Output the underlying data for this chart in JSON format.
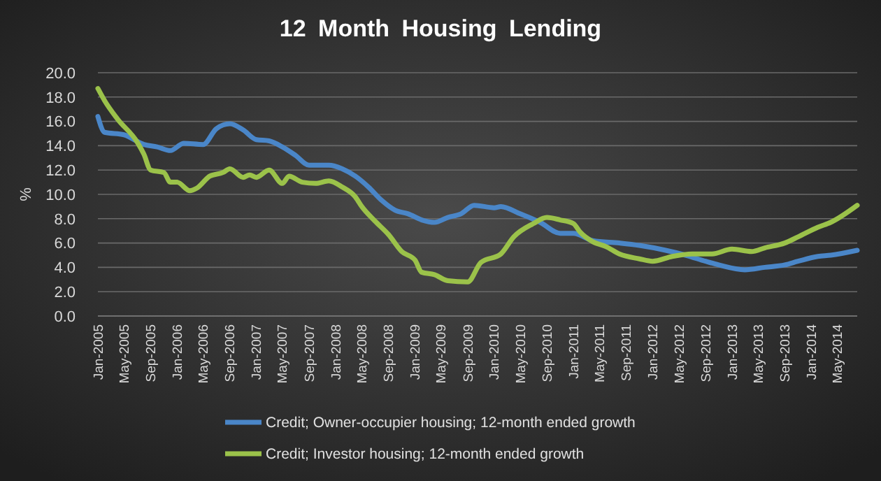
{
  "chart_data": {
    "type": "line",
    "title": "12 Month Housing Lending",
    "ylabel": "%",
    "xlim": [
      "2005-01",
      "2014-08"
    ],
    "xticks": [
      {
        "value": "2005-01",
        "label": "Jan-2005"
      },
      {
        "value": "2005-05",
        "label": "May-2005"
      },
      {
        "value": "2005-09",
        "label": "Sep-2005"
      },
      {
        "value": "2006-01",
        "label": "Jan-2006"
      },
      {
        "value": "2006-05",
        "label": "May-2006"
      },
      {
        "value": "2006-09",
        "label": "Sep-2006"
      },
      {
        "value": "2007-01",
        "label": "Jan-2007"
      },
      {
        "value": "2007-05",
        "label": "May-2007"
      },
      {
        "value": "2007-09",
        "label": "Sep-2007"
      },
      {
        "value": "2008-01",
        "label": "Jan-2008"
      },
      {
        "value": "2008-05",
        "label": "May-2008"
      },
      {
        "value": "2008-09",
        "label": "Sep-2008"
      },
      {
        "value": "2009-01",
        "label": "Jan-2009"
      },
      {
        "value": "2009-05",
        "label": "May-2009"
      },
      {
        "value": "2009-09",
        "label": "Sep-2009"
      },
      {
        "value": "2010-01",
        "label": "Jan-2010"
      },
      {
        "value": "2010-05",
        "label": "May-2010"
      },
      {
        "value": "2010-09",
        "label": "Sep-2010"
      },
      {
        "value": "2011-01",
        "label": "Jan-2011"
      },
      {
        "value": "2011-05",
        "label": "May-2011"
      },
      {
        "value": "2011-09",
        "label": "Sep-2011"
      },
      {
        "value": "2012-01",
        "label": "Jan-2012"
      },
      {
        "value": "2012-05",
        "label": "May-2012"
      },
      {
        "value": "2012-09",
        "label": "Sep-2012"
      },
      {
        "value": "2013-01",
        "label": "Jan-2013"
      },
      {
        "value": "2013-05",
        "label": "May-2013"
      },
      {
        "value": "2013-09",
        "label": "Sep-2013"
      },
      {
        "value": "2014-01",
        "label": "Jan-2014"
      },
      {
        "value": "2014-05",
        "label": "May-2014"
      }
    ],
    "ylim": [
      0,
      20
    ],
    "yticks": [
      {
        "value": 0,
        "label": "0.0"
      },
      {
        "value": 2,
        "label": "2.0"
      },
      {
        "value": 4,
        "label": "4.0"
      },
      {
        "value": 6,
        "label": "6.0"
      },
      {
        "value": 8,
        "label": "8.0"
      },
      {
        "value": 10,
        "label": "10.0"
      },
      {
        "value": 12,
        "label": "12.0"
      },
      {
        "value": 14,
        "label": "14.0"
      },
      {
        "value": 16,
        "label": "16.0"
      },
      {
        "value": 18,
        "label": "18.0"
      },
      {
        "value": 20,
        "label": "20.0"
      }
    ],
    "grid": "y",
    "legend": "bottom",
    "marker": "none",
    "line_style": "solid",
    "series": [
      {
        "name": "Credit; Owner-occupier housing; 12-month ended growth",
        "color": "#4a86c8",
        "x": [
          "2005-01",
          "2005-02",
          "2005-05",
          "2005-08",
          "2005-10",
          "2005-12",
          "2006-02",
          "2006-05",
          "2006-07",
          "2006-09",
          "2006-11",
          "2007-01",
          "2007-03",
          "2007-05",
          "2007-07",
          "2007-09",
          "2007-12",
          "2008-02",
          "2008-04",
          "2008-06",
          "2008-08",
          "2008-10",
          "2008-12",
          "2009-02",
          "2009-04",
          "2009-06",
          "2009-08",
          "2009-10",
          "2010-01",
          "2010-02",
          "2010-05",
          "2010-08",
          "2010-11",
          "2011-01",
          "2011-04",
          "2011-08",
          "2011-11",
          "2012-03",
          "2012-06",
          "2012-09",
          "2012-11",
          "2013-03",
          "2013-06",
          "2013-09",
          "2013-11",
          "2014-02",
          "2014-04",
          "2014-08"
        ],
        "values": [
          16.4,
          15.1,
          14.9,
          14.1,
          13.9,
          13.6,
          14.2,
          14.1,
          15.4,
          15.8,
          15.3,
          14.5,
          14.4,
          13.9,
          13.2,
          12.4,
          12.4,
          12.1,
          11.5,
          10.6,
          9.5,
          8.7,
          8.4,
          7.9,
          7.7,
          8.1,
          8.4,
          9.1,
          8.9,
          9.0,
          8.4,
          7.7,
          6.8,
          6.8,
          6.2,
          6.0,
          5.8,
          5.4,
          5.0,
          4.5,
          4.2,
          3.8,
          4.0,
          4.2,
          4.5,
          4.9,
          5.0,
          5.4
        ]
      },
      {
        "name": "Credit; Investor housing; 12-month ended growth",
        "color": "#9bc24a",
        "x": [
          "2005-01",
          "2005-02",
          "2005-04",
          "2005-07",
          "2005-08",
          "2005-09",
          "2005-11",
          "2005-12",
          "2006-01",
          "2006-03",
          "2006-04",
          "2006-06",
          "2006-08",
          "2006-09",
          "2006-11",
          "2006-12",
          "2007-01",
          "2007-03",
          "2007-05",
          "2007-06",
          "2007-08",
          "2007-10",
          "2007-12",
          "2008-02",
          "2008-04",
          "2008-05",
          "2008-07",
          "2008-09",
          "2008-11",
          "2009-01",
          "2009-02",
          "2009-04",
          "2009-06",
          "2009-09",
          "2009-11",
          "2010-02",
          "2010-04",
          "2010-07",
          "2010-09",
          "2010-11",
          "2011-01",
          "2011-02",
          "2011-04",
          "2011-06",
          "2011-08",
          "2011-11",
          "2012-01",
          "2012-04",
          "2012-07",
          "2012-10",
          "2013-01",
          "2013-04",
          "2013-06",
          "2013-09",
          "2013-11",
          "2014-02",
          "2014-04",
          "2014-08"
        ],
        "values": [
          18.7,
          17.7,
          16.2,
          14.3,
          13.3,
          12.0,
          11.8,
          11.0,
          11.0,
          10.3,
          10.5,
          11.5,
          11.8,
          12.1,
          11.4,
          11.6,
          11.4,
          12.0,
          10.9,
          11.5,
          11.0,
          10.9,
          11.1,
          10.6,
          9.8,
          9.0,
          7.8,
          6.7,
          5.3,
          4.6,
          3.6,
          3.4,
          2.9,
          2.8,
          4.4,
          5.1,
          6.5,
          7.6,
          8.1,
          7.9,
          7.6,
          6.9,
          6.1,
          5.7,
          5.1,
          4.7,
          4.5,
          4.9,
          5.1,
          5.1,
          5.5,
          5.3,
          5.6,
          6.0,
          6.5,
          7.3,
          7.7,
          9.1
        ]
      }
    ]
  }
}
